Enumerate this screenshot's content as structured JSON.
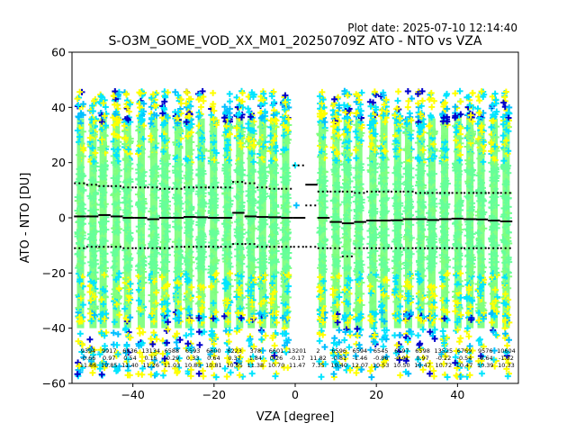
{
  "plot_date": "Plot date: 2025-07-10 12:14:40",
  "chart_data": {
    "type": "scatter",
    "title": "S-O3M_GOME_VOD_XX_M01_20250709Z ATO - NTO vs VZA",
    "xlabel": "VZA [degree]",
    "ylabel": "ATO - NTO [DU]",
    "xlim": [
      -55,
      55
    ],
    "ylim": [
      -60,
      60
    ],
    "xticks": [
      -40,
      -20,
      0,
      20,
      40
    ],
    "yticks": [
      -60,
      -40,
      -20,
      0,
      20,
      40,
      60
    ],
    "grid": false,
    "bin_centers": [
      -53,
      -50,
      -47,
      -44,
      -41,
      -38,
      -35,
      -32,
      -29,
      -26,
      -23,
      -20,
      -17,
      -14,
      -11,
      -8,
      -5,
      -2,
      1,
      4,
      7,
      10,
      13,
      16,
      19,
      22,
      25,
      28,
      31,
      34,
      37,
      40,
      43,
      46,
      49,
      52
    ],
    "median": [
      0.5,
      0.5,
      1.0,
      0.5,
      0.0,
      0.0,
      -0.5,
      0.0,
      0.0,
      0.3,
      0.2,
      0.0,
      0.0,
      1.8,
      0.5,
      0.3,
      0.2,
      0.0,
      0.0,
      12.0,
      0.0,
      -1.5,
      -2.0,
      -1.5,
      -1.0,
      -1.0,
      -0.9,
      -0.5,
      -0.5,
      -0.8,
      -0.5,
      -0.3,
      -0.5,
      -0.6,
      -1.0,
      -1.3
    ],
    "upper": [
      12.5,
      12.0,
      11.5,
      11.5,
      11.0,
      11.0,
      11.0,
      10.5,
      10.5,
      11.0,
      11.0,
      11.0,
      11.0,
      13.0,
      12.5,
      11.0,
      10.5,
      10.5,
      19.0,
      4.5,
      9.5,
      9.5,
      9.5,
      9.0,
      9.5,
      9.5,
      9.5,
      9.5,
      9.0,
      9.0,
      9.0,
      9.0,
      9.0,
      9.0,
      9.0,
      9.0
    ],
    "lower": [
      -11.0,
      -10.5,
      -10.5,
      -10.5,
      -11.0,
      -11.0,
      -11.0,
      -11.0,
      -10.5,
      -10.5,
      -10.5,
      -10.5,
      -10.5,
      -9.5,
      -9.5,
      -10.5,
      -10.5,
      -10.5,
      -10.5,
      -10.5,
      -11.0,
      -11.0,
      -14.0,
      -11.0,
      -11.0,
      -11.0,
      -11.0,
      -11.0,
      -11.0,
      -11.0,
      -11.0,
      -11.0,
      -11.0,
      -11.0,
      -11.0,
      -11.0
    ],
    "stats_rows": {
      "counts": [
        "9394",
        "9917",
        "6536",
        "13134",
        "6588",
        "6593",
        "6600",
        "6223",
        "378",
        "6601",
        "13201",
        "2",
        "6596",
        "6594",
        "6545",
        "6597",
        "6598",
        "13525",
        "6769",
        "9576",
        "10604"
      ],
      "means": [
        "-0.66",
        "0.97",
        "0.54",
        "0.15",
        "-0.29",
        "0.33",
        "0.64",
        "0.37",
        "1.84",
        "0.26",
        "-0.17",
        "11.82",
        "-0.81",
        "-1.46",
        "-0.86",
        "-0.91",
        "0.97",
        "-0.22",
        "-0.54",
        "-0.64",
        "-1.32"
      ],
      "stds": [
        "11.86",
        "10.85",
        "11.40",
        "11.26",
        "11.03",
        "10.83",
        "10.81",
        "10.55",
        "11.38",
        "10.70",
        "11.47",
        "7.35",
        "10.40",
        "12.07",
        "10.53",
        "10.50",
        "10.47",
        "10.72",
        "10.47",
        "10.39",
        "10.33"
      ]
    },
    "scatter_palette": [
      "#66ff99",
      "#7fff7f",
      "#ffff00",
      "#00e5ff",
      "#00bfff",
      "#0000cc",
      "#000000"
    ]
  }
}
